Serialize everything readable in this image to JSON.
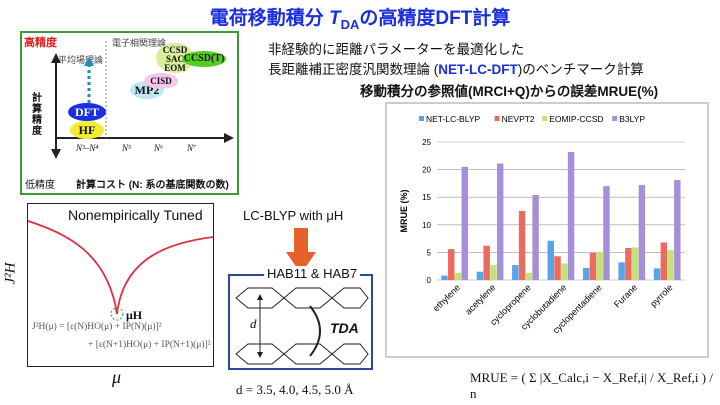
{
  "title": {
    "main": "電荷移動積分 ",
    "t": "T",
    "sub": "DA",
    "rest": "の高精度DFT計算"
  },
  "intro": {
    "line1": "非経験的に距離パラメーターを最適化した",
    "line2_pre": "長距離補正密度汎関数理論 (",
    "line2_hl": "NET-LC-DFT",
    "line2_post": ")のベンチマーク計算",
    "line3": "移動積分の参照値(MRCI+Q)からの誤差MRUE(%)"
  },
  "cost_diagram": {
    "high": "高精度",
    "low": "低精度",
    "yaxis": "計算精度",
    "xaxis": "計算コスト (N: 系の基底関数の数)",
    "mean_field": "平均場理論",
    "correlated": "電子相関理論",
    "methods": [
      "HF",
      "DFT",
      "MP2",
      "CISD",
      "CCSD\nSAC\nEOM",
      "CCSD(T)"
    ],
    "ticks": [
      "N³–N⁴",
      "N⁵",
      "N⁶",
      "N⁷"
    ]
  },
  "tuning": {
    "title": "Nonempirically Tuned",
    "ylabel": "J²H",
    "xlabel": "μ",
    "min_label": "μH",
    "eq1": "J²H(μ) = [ε(N)HO(μ) + IP(N)(μ)]²",
    "eq2": "+ [ε(N+1)HO(μ) + IP(N+1)(μ)]²"
  },
  "scheme": {
    "method": "LC-BLYP with μH",
    "set": "HAB11 & HAB7",
    "d": "d",
    "tda": "TDA",
    "distances": "d = 3.5, 4.0, 4.5, 5.0 Å"
  },
  "formula": "MRUE = ( Σ |X_Calc,i − X_Ref,i| / X_Ref,i ) / n",
  "chart_data": {
    "type": "bar",
    "title": "",
    "xlabel": "",
    "ylabel": "MRUE (%)",
    "ylim": [
      0,
      25
    ],
    "yticks": [
      0,
      5,
      10,
      15,
      20,
      25
    ],
    "grid": true,
    "legend": "top",
    "categories": [
      "ethylene",
      "acetylene",
      "cyclopropene",
      "cyclobutadiene",
      "cyclopentadiene",
      "Furane",
      "pyrrole"
    ],
    "series": [
      {
        "name": "NET-LC-BLYP",
        "color": "#5aa3e8",
        "values": [
          0.8,
          1.5,
          2.7,
          7.1,
          2.2,
          3.2,
          2.1
        ]
      },
      {
        "name": "NEVPT2",
        "color": "#ec6a5e",
        "values": [
          5.6,
          6.2,
          12.5,
          4.3,
          4.9,
          5.8,
          6.8
        ]
      },
      {
        "name": "EOMIP-CCSD",
        "color": "#c4e27a",
        "values": [
          1.3,
          2.7,
          1.3,
          3.0,
          5.1,
          5.9,
          5.4
        ]
      },
      {
        "name": "B3LYP",
        "color": "#a58fd8",
        "values": [
          20.5,
          21.1,
          15.4,
          23.2,
          17.0,
          17.2,
          18.1
        ]
      }
    ]
  }
}
